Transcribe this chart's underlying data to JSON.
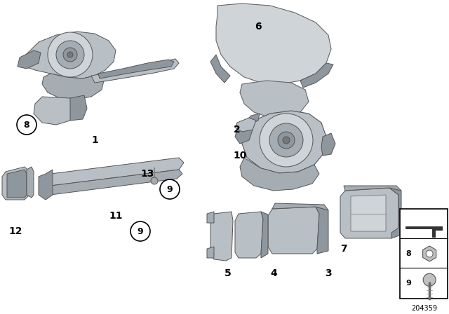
{
  "background_color": "#ffffff",
  "part_color": "#b8bfc5",
  "part_color_dark": "#8e979e",
  "part_color_light": "#ced4d8",
  "part_color_mid": "#a5adb3",
  "diagram_number": "204359",
  "fig_width": 6.4,
  "fig_height": 4.48,
  "dpi": 100
}
